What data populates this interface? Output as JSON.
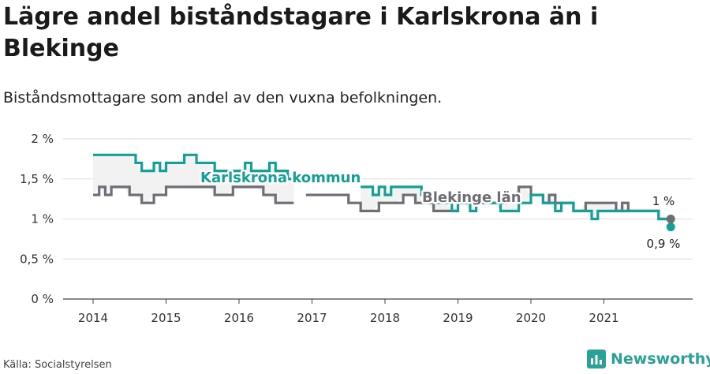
{
  "title": "Lägre andel biståndstagare i Karlskrona än i Blekinge",
  "subtitle": "Biståndsmottagare som andel av den vuxna befolkningen.",
  "source": "Källa: Socialstyrelsen",
  "brand": "Newsworthy",
  "colors": {
    "karlskrona": "#14a096",
    "blekinge": "#6e6e74",
    "grid": "#dddddd",
    "axis": "#444444",
    "band": "#f2f2f2"
  },
  "chart_data": {
    "type": "line",
    "ylim": [
      0,
      2
    ],
    "yticks": [
      0,
      0.5,
      1,
      1.5,
      2
    ],
    "ytick_labels": [
      "0 %",
      "0,5 %",
      "1 %",
      "1,5 %",
      "2 %"
    ],
    "xticks": [
      2014,
      2015,
      2016,
      2017,
      2018,
      2019,
      2020,
      2021
    ],
    "xtick_labels": [
      "2014",
      "2015",
      "2016",
      "2017",
      "2018",
      "2019",
      "2020",
      "2021"
    ],
    "x_start": 2014.0,
    "x_step_months": 1,
    "series": [
      {
        "name": "Karlskrona kommun",
        "color": "#14a096",
        "end_label": "0,9 %",
        "values": [
          1.8,
          1.8,
          1.8,
          1.8,
          1.8,
          1.8,
          1.8,
          1.7,
          1.6,
          1.6,
          1.7,
          1.6,
          1.7,
          1.7,
          1.7,
          1.8,
          1.8,
          1.7,
          1.7,
          1.7,
          1.6,
          1.6,
          1.6,
          1.6,
          1.6,
          1.7,
          1.6,
          1.6,
          1.6,
          1.7,
          1.6,
          1.6,
          1.5,
          1.5,
          null,
          null,
          null,
          null,
          null,
          null,
          null,
          null,
          null,
          null,
          1.4,
          1.4,
          1.3,
          1.4,
          1.3,
          1.4,
          1.4,
          1.4,
          1.4,
          1.4,
          1.3,
          1.3,
          1.2,
          1.2,
          1.2,
          1.1,
          1.2,
          1.2,
          1.1,
          1.2,
          1.2,
          1.2,
          1.2,
          1.1,
          1.1,
          1.1,
          1.2,
          1.2,
          1.3,
          1.3,
          1.2,
          1.2,
          1.1,
          1.2,
          1.2,
          1.1,
          1.1,
          1.1,
          1.0,
          1.1,
          1.1,
          1.1,
          1.1,
          1.1,
          1.1,
          1.1,
          1.1,
          1.1,
          1.1,
          1.0,
          1.0,
          0.9
        ]
      },
      {
        "name": "Blekinge län",
        "color": "#6e6e74",
        "end_label": "1 %",
        "values": [
          1.3,
          1.4,
          1.3,
          1.4,
          1.4,
          1.4,
          1.3,
          1.3,
          1.2,
          1.2,
          1.3,
          1.3,
          1.4,
          1.4,
          1.4,
          1.4,
          1.4,
          1.4,
          1.4,
          1.4,
          1.3,
          1.3,
          1.3,
          1.4,
          1.4,
          1.4,
          1.4,
          1.4,
          1.3,
          1.3,
          1.2,
          1.2,
          1.2,
          1.2,
          null,
          1.3,
          1.3,
          1.3,
          1.3,
          1.3,
          1.3,
          1.3,
          1.2,
          1.2,
          1.1,
          1.1,
          1.1,
          1.2,
          1.2,
          1.2,
          1.2,
          1.3,
          1.3,
          1.2,
          1.2,
          1.2,
          1.1,
          1.1,
          1.1,
          1.1,
          1.2,
          1.2,
          1.2,
          1.2,
          1.2,
          1.2,
          1.2,
          1.2,
          1.3,
          1.3,
          1.4,
          1.4,
          1.3,
          1.3,
          1.2,
          1.3,
          1.2,
          1.2,
          1.2,
          1.1,
          1.1,
          1.2,
          1.2,
          1.2,
          1.2,
          1.2,
          1.1,
          1.2,
          1.1,
          1.1,
          1.1,
          1.1,
          1.1,
          1.0,
          1.0,
          1.0
        ]
      }
    ]
  }
}
